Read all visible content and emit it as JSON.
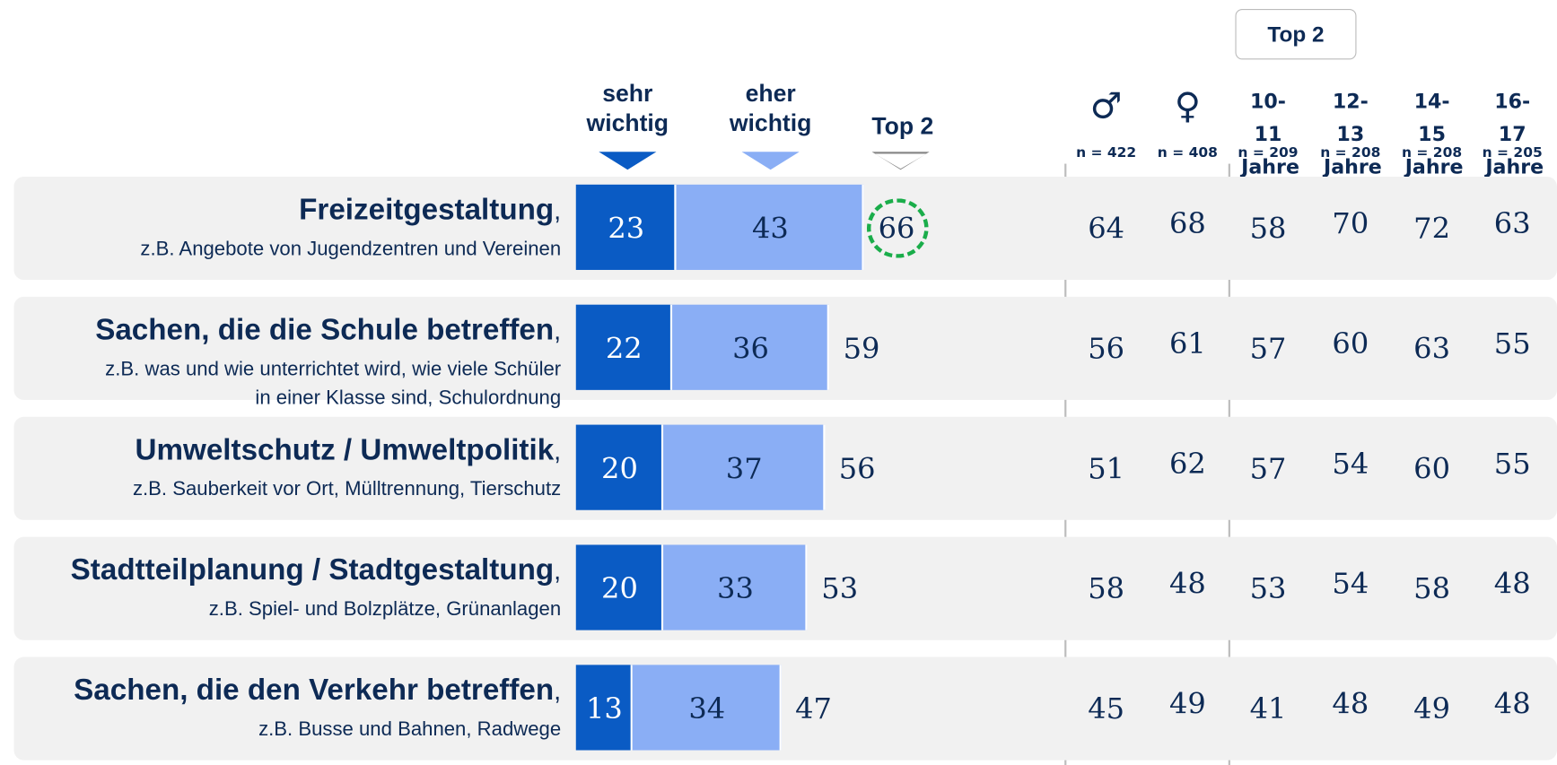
{
  "chart_data": {
    "type": "bar",
    "orientation": "horizontal",
    "stacked": true,
    "categories": [
      "Freizeitgestaltung",
      "Sachen, die die Schule betreffen",
      "Umweltschutz / Umweltpolitik",
      "Stadtteilplanung / Stadtgestaltung",
      "Sachen, die den Verkehr betreffen"
    ],
    "separator": ",",
    "descriptions": [
      "z.B. Angebote von Jugendzentren und Vereinen",
      "z.B. was und wie unterrichtet wird, wie viele Schüler in einer Klasse sind, Schulordnung",
      "z.B. Sauberkeit vor Ort, Mülltrennung, Tierschutz",
      "z.B. Spiel- und Bolzplätze, Grünanlagen",
      "z.B. Busse und Bahnen, Radwege"
    ],
    "series": [
      {
        "name": "sehr wichtig",
        "color": "#0a5bc4",
        "label_color": "#ffffff",
        "values": [
          23,
          22,
          20,
          20,
          13
        ]
      },
      {
        "name": "eher wichtig",
        "color": "#8aaef5",
        "label_color": "#0d2a55",
        "values": [
          43,
          36,
          37,
          33,
          34
        ]
      }
    ],
    "totals_label": "Top 2",
    "totals": [
      66,
      59,
      56,
      53,
      47
    ],
    "highlighted": [
      true,
      false,
      false,
      false,
      false
    ],
    "highlight_color": "#1aad4a",
    "table": {
      "header_label": "Top 2",
      "columns": [
        {
          "label": "♂",
          "n": "n = 422"
        },
        {
          "label": "♀",
          "n": "n = 408"
        },
        {
          "label": "10-11 Jahre",
          "n": "n = 209"
        },
        {
          "label": "12-13 Jahre",
          "n": "n = 208"
        },
        {
          "label": "14-15 Jahre",
          "n": "n = 208"
        },
        {
          "label": "16-17 Jahre",
          "n": "n = 205"
        }
      ],
      "rows": [
        [
          64,
          68,
          58,
          70,
          72,
          63
        ],
        [
          56,
          61,
          57,
          60,
          63,
          55
        ],
        [
          51,
          62,
          57,
          54,
          60,
          55
        ],
        [
          58,
          48,
          53,
          54,
          58,
          48
        ],
        [
          45,
          49,
          41,
          48,
          49,
          48
        ]
      ]
    }
  }
}
